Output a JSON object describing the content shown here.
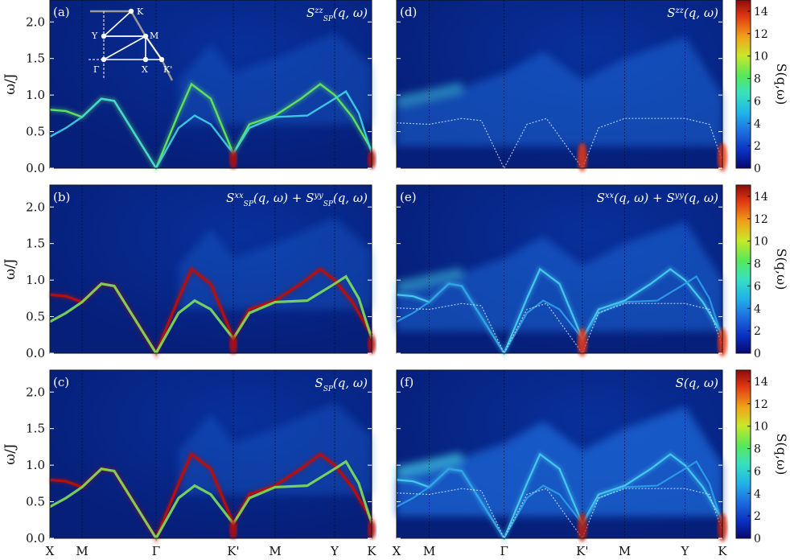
{
  "chart_data": {
    "type": "heatmap",
    "figure": "Dynamical spin structure factor along high-symmetry path",
    "path_points": [
      "X",
      "M",
      "Γ",
      "K'",
      "M",
      "Y",
      "K"
    ],
    "path_positions": [
      0,
      0.1,
      0.33,
      0.57,
      0.7,
      0.885,
      1.0
    ],
    "ylabel": "ω/J",
    "ylim": [
      0,
      2.3
    ],
    "yticks": [
      "0.0",
      "0.5",
      "1.0",
      "1.5",
      "2.0"
    ],
    "colorbar": {
      "label": "S(q,ω)",
      "range": [
        0,
        15
      ],
      "ticks": [
        "0",
        "2",
        "4",
        "6",
        "8",
        "10",
        "12",
        "14"
      ],
      "colormap": [
        "#08086e",
        "#0a2fbf",
        "#1e6fe0",
        "#21b4e8",
        "#38e0c0",
        "#56e85a",
        "#c9e82a",
        "#f0a21a",
        "#e23a12",
        "#8e0a0a"
      ]
    },
    "panels": [
      {
        "id": "a",
        "label": "(a)",
        "title": "S_SP^zz(q,ω)",
        "title_main": "S",
        "title_sup": "zz",
        "title_sub": "SP",
        "title_tail": "(q, ω)"
      },
      {
        "id": "b",
        "label": "(b)",
        "title": "S_SP^xx(q,ω)+S_SP^yy(q,ω)"
      },
      {
        "id": "c",
        "label": "(c)",
        "title": "S_SP(q,ω)"
      },
      {
        "id": "d",
        "label": "(d)",
        "title": "S^zz(q,ω)"
      },
      {
        "id": "e",
        "label": "(e)",
        "title": "S^xx(q,ω)+S^yy(q,ω)"
      },
      {
        "id": "f",
        "label": "(f)",
        "title": "S(q,ω)"
      }
    ],
    "branches": {
      "upper": [
        [
          0,
          0.8
        ],
        [
          0.05,
          0.78
        ],
        [
          0.1,
          0.7
        ],
        [
          0.16,
          0.95
        ],
        [
          0.2,
          0.92
        ],
        [
          0.33,
          0.0
        ],
        [
          0.4,
          0.75
        ],
        [
          0.44,
          1.15
        ],
        [
          0.5,
          0.95
        ],
        [
          0.57,
          0.2
        ],
        [
          0.62,
          0.6
        ],
        [
          0.7,
          0.72
        ],
        [
          0.78,
          0.95
        ],
        [
          0.84,
          1.15
        ],
        [
          0.885,
          1.0
        ],
        [
          0.94,
          0.7
        ],
        [
          1.0,
          0.25
        ]
      ],
      "lower": [
        [
          0,
          0.43
        ],
        [
          0.05,
          0.55
        ],
        [
          0.1,
          0.7
        ],
        [
          0.16,
          0.95
        ],
        [
          0.2,
          0.92
        ],
        [
          0.33,
          0.0
        ],
        [
          0.4,
          0.55
        ],
        [
          0.45,
          0.72
        ],
        [
          0.5,
          0.6
        ],
        [
          0.57,
          0.2
        ],
        [
          0.62,
          0.55
        ],
        [
          0.7,
          0.7
        ],
        [
          0.8,
          0.72
        ],
        [
          0.885,
          0.95
        ],
        [
          0.92,
          1.05
        ],
        [
          0.96,
          0.75
        ],
        [
          1.0,
          0.2
        ]
      ],
      "flat_band_d": [
        [
          0.0,
          0.62
        ],
        [
          0.1,
          0.6
        ],
        [
          0.2,
          0.68
        ],
        [
          0.26,
          0.65
        ],
        [
          0.33,
          0.0
        ],
        [
          0.4,
          0.6
        ],
        [
          0.46,
          0.68
        ],
        [
          0.57,
          0.0
        ],
        [
          0.62,
          0.55
        ],
        [
          0.7,
          0.68
        ],
        [
          0.885,
          0.68
        ],
        [
          0.96,
          0.6
        ],
        [
          1.0,
          0.1
        ]
      ]
    },
    "inset_bz_labels": [
      "K",
      "Y",
      "M",
      "Γ",
      "X",
      "K'"
    ]
  }
}
